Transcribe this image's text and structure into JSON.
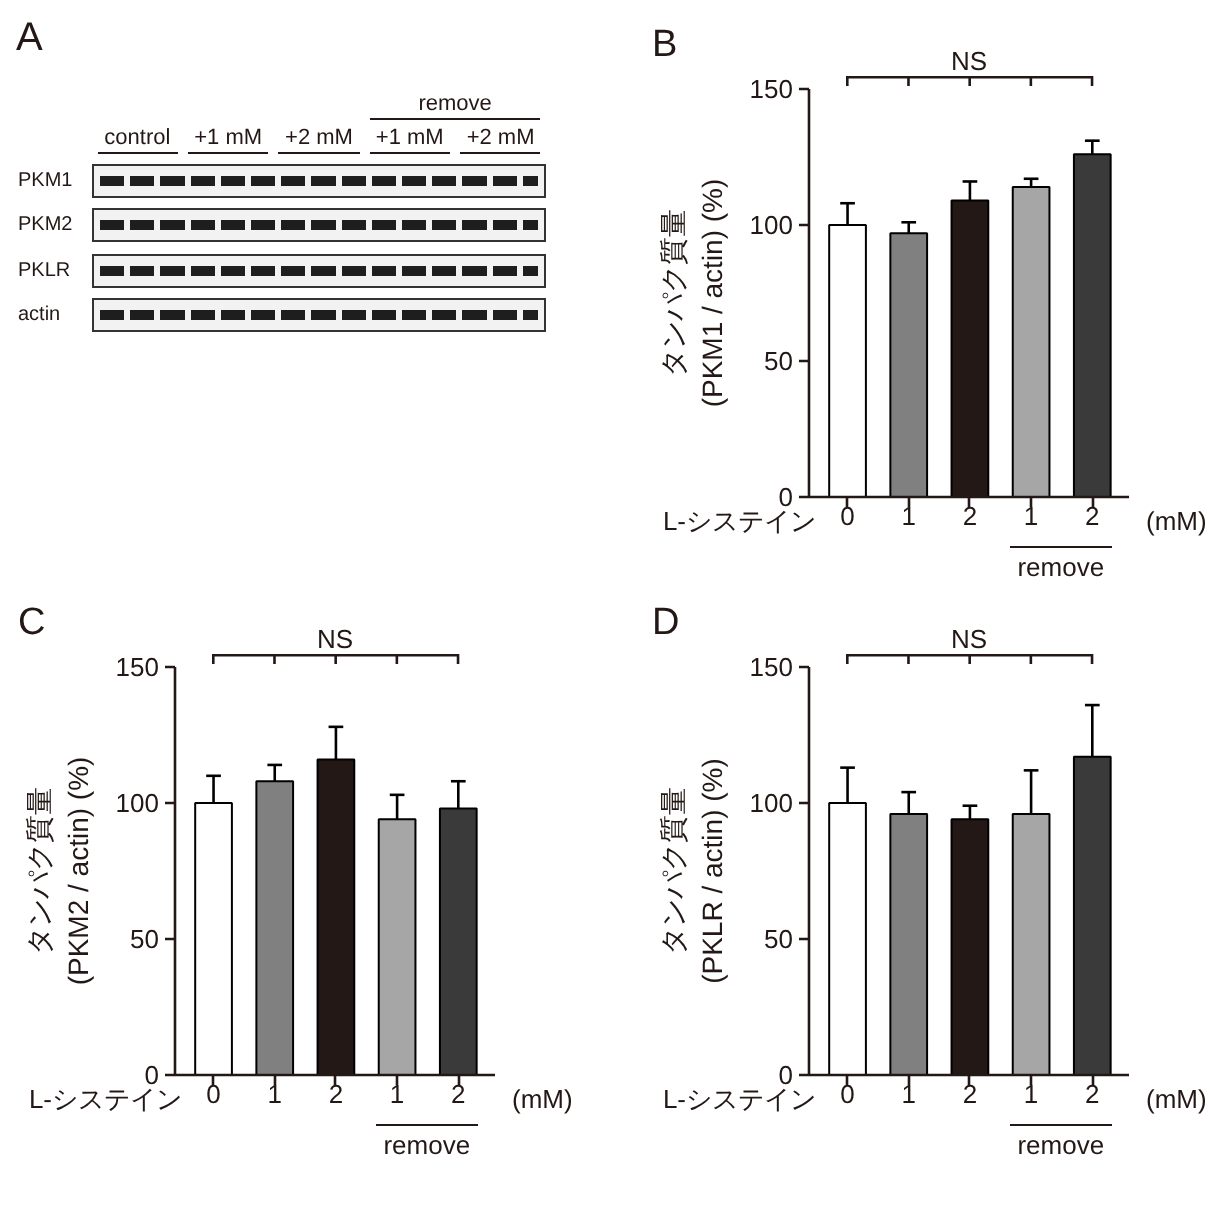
{
  "chart_data": [
    {
      "type": "other",
      "title": "A",
      "categories": [
        "control",
        "+1 mM",
        "+2 mM",
        "+1 mM",
        "+2 mM"
      ],
      "y_categories": [
        "PKM1",
        "PKM2",
        "PKLR",
        "actin"
      ],
      "annotations": [
        "remove"
      ]
    },
    {
      "type": "bar",
      "title": "B",
      "categories": [
        "0",
        "1",
        "2",
        "1",
        "2"
      ],
      "values": [
        100,
        97,
        109,
        114,
        126
      ],
      "errors": [
        [
          100,
          108
        ],
        [
          97,
          101
        ],
        [
          109,
          116
        ],
        [
          114,
          117
        ],
        [
          126,
          131
        ]
      ],
      "colors": [
        "#ffffff",
        "#808080",
        "#231815",
        "#a6a6a6",
        "#3a3a3a"
      ],
      "xlabel": "L-システイン",
      "ylabel": "タンパク質量\n(PKM1 / actin) (%)",
      "ylim": [
        0,
        150
      ],
      "yticks": [
        0,
        50,
        100,
        150
      ],
      "annotations": [
        "NS",
        "remove",
        "(mM)"
      ]
    },
    {
      "type": "bar",
      "title": "C",
      "categories": [
        "0",
        "1",
        "2",
        "1",
        "2"
      ],
      "values": [
        100,
        108,
        116,
        94,
        98
      ],
      "errors": [
        [
          100,
          110
        ],
        [
          108,
          114
        ],
        [
          116,
          128
        ],
        [
          94,
          103
        ],
        [
          98,
          108
        ]
      ],
      "colors": [
        "#ffffff",
        "#808080",
        "#231815",
        "#a6a6a6",
        "#3a3a3a"
      ],
      "xlabel": "L-システイン",
      "ylabel": "タンパク質量\n(PKM2 / actin) (%)",
      "ylim": [
        0,
        150
      ],
      "yticks": [
        0,
        50,
        100,
        150
      ],
      "annotations": [
        "NS",
        "remove",
        "(mM)"
      ]
    },
    {
      "type": "bar",
      "title": "D",
      "categories": [
        "0",
        "1",
        "2",
        "1",
        "2"
      ],
      "values": [
        100,
        96,
        94,
        96,
        117
      ],
      "errors": [
        [
          100,
          113
        ],
        [
          96,
          104
        ],
        [
          94,
          99
        ],
        [
          96,
          112
        ],
        [
          117,
          136
        ]
      ],
      "colors": [
        "#ffffff",
        "#808080",
        "#231815",
        "#a6a6a6",
        "#3a3a3a"
      ],
      "xlabel": "L-システイン",
      "ylabel": "タンパク質量\n(PKLR / actin) (%)",
      "ylim": [
        0,
        150
      ],
      "yticks": [
        0,
        50,
        100,
        150
      ],
      "annotations": [
        "NS",
        "remove",
        "(mM)"
      ]
    }
  ]
}
